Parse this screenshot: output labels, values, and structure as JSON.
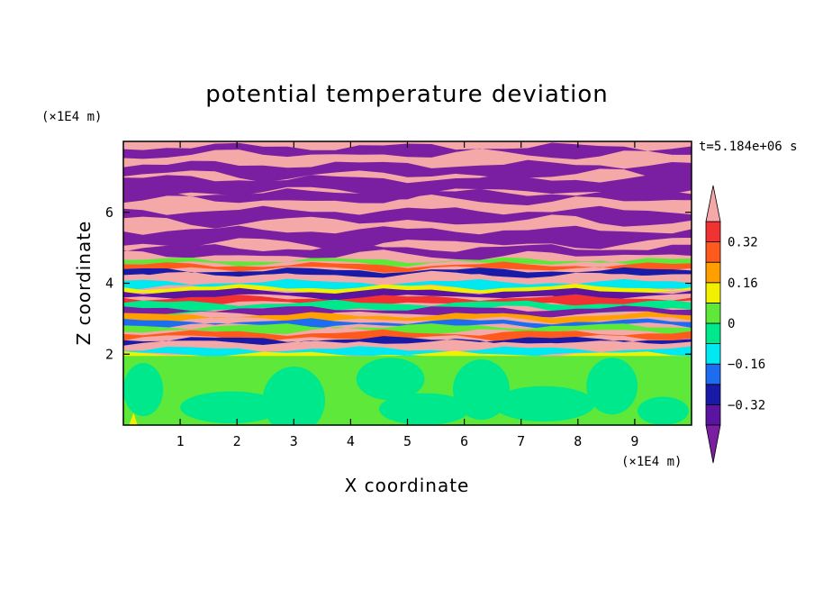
{
  "chart_data": {
    "type": "heatmap",
    "title": "potential temperature deviation",
    "xlabel": "X coordinate",
    "ylabel": "Z coordinate",
    "x_unit": "(×1E4 m)",
    "y_unit": "(×1E4 m)",
    "time_label": "t=5.184e+06 s",
    "xlim": [
      0,
      10
    ],
    "ylim": [
      0,
      8
    ],
    "x_ticks": [
      1,
      2,
      3,
      4,
      5,
      6,
      7,
      8,
      9
    ],
    "y_ticks": [
      2,
      4,
      6
    ],
    "colorbar": {
      "levels": [
        -0.4,
        -0.32,
        -0.24,
        -0.16,
        -0.08,
        0,
        0.08,
        0.16,
        0.24,
        0.32,
        0.4
      ],
      "tick_labels": [
        "0.32",
        "0.16",
        "0",
        "−0.16",
        "−0.32"
      ],
      "tick_values": [
        0.32,
        0.16,
        0,
        -0.16,
        -0.32
      ],
      "colors": [
        "#7a1fa2",
        "#5a14a0",
        "#1a1aa8",
        "#1e6cf0",
        "#00e8f0",
        "#00e88c",
        "#5ee83a",
        "#f0f000",
        "#ffa000",
        "#ff5a1e",
        "#f03232",
        "#f4a8a8"
      ],
      "extend": "both"
    },
    "regions": [
      {
        "z_range": [
          0,
          1.95
        ],
        "description": "lower layer, mostly 0 to 0.08 with 0 to -0.08 eddies"
      },
      {
        "z_range": [
          1.95,
          4.6
        ],
        "description": "mixed banded layer with values from -0.4 to 0.4"
      },
      {
        "z_range": [
          4.6,
          8
        ],
        "description": "alternating horizontal bands of >0.4 and <-0.4"
      }
    ]
  }
}
